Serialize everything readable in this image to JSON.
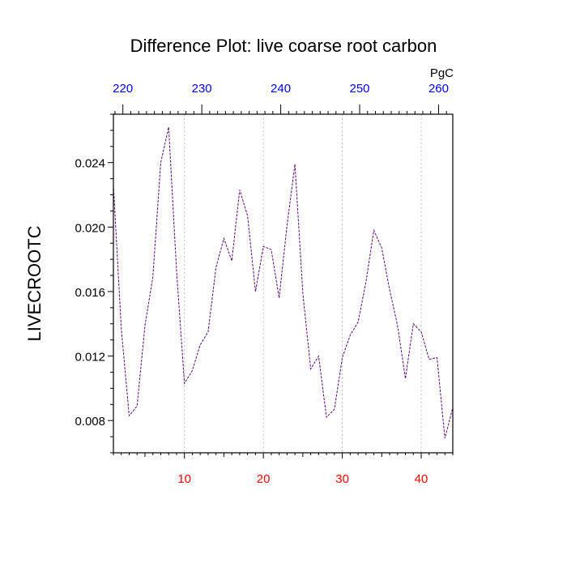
{
  "chart_data": {
    "type": "line",
    "title": "Difference Plot: live coarse root carbon",
    "ylabel": "LIVECROOTC",
    "xlabel": "",
    "top_axis_unit": "PgC",
    "x_range": [
      1,
      44
    ],
    "ylim": [
      0.006,
      0.027
    ],
    "bottom_ticks": [
      "10",
      "20",
      "30",
      "40"
    ],
    "bottom_tick_values": [
      10,
      20,
      30,
      40
    ],
    "top_ticks": [
      "220",
      "230",
      "240",
      "250",
      "260"
    ],
    "top_tick_values": [
      220,
      230,
      240,
      250,
      260
    ],
    "top_axis_range": [
      218.8,
      261.8
    ],
    "y_ticks": [
      "0.008",
      "0.012",
      "0.016",
      "0.020",
      "0.024"
    ],
    "y_tick_values": [
      0.008,
      0.012,
      0.016,
      0.02,
      0.024
    ],
    "grid": "vertical-dotted",
    "colors": {
      "line": "#5b0a7a",
      "bottom_ticks": "#ff0000",
      "top_ticks": "#0000ff",
      "grid": "#b0b0b0"
    },
    "series": [
      {
        "x": [
          1,
          2,
          3,
          4,
          5,
          6,
          7,
          8,
          9,
          10,
          11,
          12,
          13,
          14,
          15,
          16,
          17,
          18,
          19,
          20,
          21,
          22,
          23,
          24,
          25,
          26,
          27,
          28,
          29,
          30,
          31,
          32,
          33,
          34,
          35,
          36,
          37,
          38,
          39,
          40,
          41,
          42,
          43,
          44
        ],
        "values": [
          0.0226,
          0.0137,
          0.0083,
          0.0089,
          0.0139,
          0.0169,
          0.024,
          0.0262,
          0.0173,
          0.0103,
          0.0111,
          0.0127,
          0.0135,
          0.0175,
          0.0193,
          0.0179,
          0.0223,
          0.0207,
          0.016,
          0.0188,
          0.0186,
          0.0156,
          0.0201,
          0.0239,
          0.0159,
          0.0112,
          0.012,
          0.0082,
          0.0087,
          0.0119,
          0.0133,
          0.0141,
          0.0166,
          0.0198,
          0.0187,
          0.0161,
          0.0139,
          0.0106,
          0.014,
          0.0135,
          0.0118,
          0.0119,
          0.0069,
          0.0088
        ]
      }
    ]
  }
}
